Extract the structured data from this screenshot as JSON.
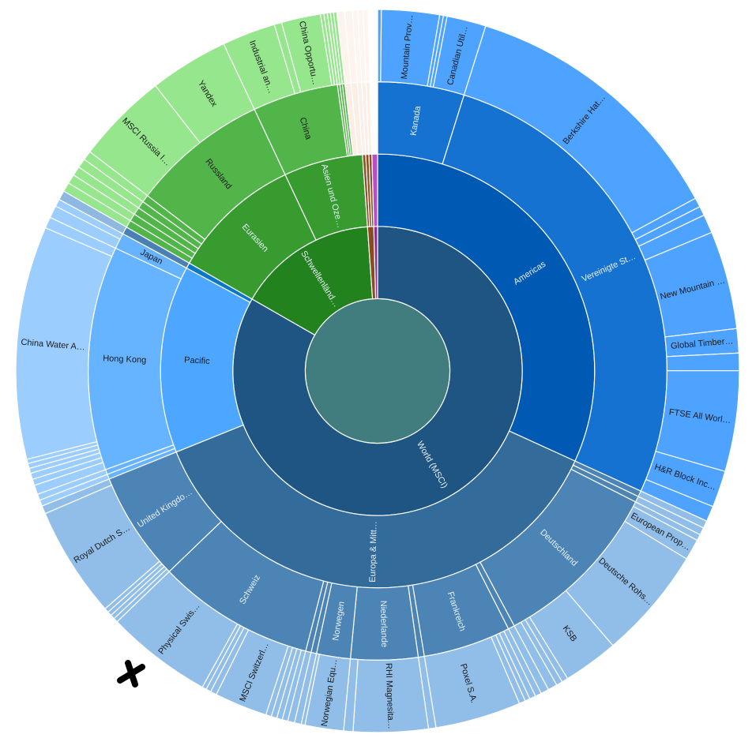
{
  "chart_data": {
    "type": "sunburst",
    "text_color_dark": "#1a1a1a",
    "text_color_light": "#e8f0f8",
    "root": {
      "name": "",
      "color": "#417d7e",
      "children": [
        {
          "name": "World (MSCI)",
          "color": "#1f5582",
          "children": [
            {
              "name": "Americas",
              "palette": [
                "#0059b3",
                "#1672d0",
                "#4da3ff"
              ],
              "children": [
                {
                  "name": "Kanada",
                  "children": [
                    {
                      "name": "",
                      "value": 0.6
                    },
                    {
                      "name": "Mountain Prov…",
                      "value": 9.3
                    },
                    {
                      "name": "",
                      "value": 0.6
                    },
                    {
                      "name": "",
                      "value": 0.6
                    },
                    {
                      "name": "Canadian Util…",
                      "value": 6.3
                    }
                  ]
                },
                {
                  "name": "Vereinigte St…",
                  "children": [
                    {
                      "name": "Berkshire Hat…",
                      "value": 44.1
                    },
                    {
                      "name": "",
                      "value": 1.5
                    },
                    {
                      "name": "",
                      "value": 1.5
                    },
                    {
                      "name": "",
                      "value": 3
                    },
                    {
                      "name": "New Mountain …",
                      "value": 15.8
                    },
                    {
                      "name": "Global Timber…",
                      "value": 3.9
                    },
                    {
                      "name": "",
                      "value": 2.8
                    },
                    {
                      "name": "FTSE All Worl…",
                      "value": 16.2
                    },
                    {
                      "name": "H&R Block Inc…",
                      "value": 5.9
                    },
                    {
                      "name": "",
                      "value": 2.5
                    }
                  ]
                }
              ]
            },
            {
              "name": "Europa & Mitt…",
              "palette": [
                "#336b9b",
                "#4c84b5",
                "#91bee8"
              ],
              "children": [
                {
                  "name": "",
                  "value": 1.2
                },
                {
                  "name": "",
                  "value": 1.2
                },
                {
                  "name": "Deutschland",
                  "children": [
                    {
                      "name": "",
                      "value": 1
                    },
                    {
                      "name": "European Prop…",
                      "value": 3.4
                    },
                    {
                      "name": "Deutsche Rohs…",
                      "value": 18.1
                    },
                    {
                      "name": "KSB",
                      "value": 8.9
                    },
                    {
                      "name": "",
                      "value": 1
                    },
                    {
                      "name": "",
                      "value": 1
                    },
                    {
                      "name": "",
                      "value": 1.5
                    }
                  ]
                },
                {
                  "name": "",
                  "value": 1.3
                },
                {
                  "name": "Frankreich",
                  "children": [
                    {
                      "name": "",
                      "value": 1
                    },
                    {
                      "name": "",
                      "value": 1
                    },
                    {
                      "name": "",
                      "value": 0.8
                    },
                    {
                      "name": "",
                      "value": 1
                    },
                    {
                      "name": "Poxel S.A.",
                      "value": 13.8
                    }
                  ]
                },
                {
                  "name": "",
                  "value": 1.2
                },
                {
                  "name": "Niederlande",
                  "children": [
                    {
                      "name": "RHI Magnesita…",
                      "value": 12
                    },
                    {
                      "name": "",
                      "value": 1.5
                    }
                  ]
                },
                {
                  "name": "Norwegen",
                  "children": [
                    {
                      "name": "Norwegian Equ…",
                      "value": 6.2
                    },
                    {
                      "name": "",
                      "value": 0.6
                    }
                  ]
                },
                {
                  "name": "",
                  "value": 1.1
                },
                {
                  "name": "",
                  "value": 1.1
                },
                {
                  "name": "Schweiz",
                  "children": [
                    {
                      "name": "",
                      "value": 0.9
                    },
                    {
                      "name": "",
                      "value": 0.9
                    },
                    {
                      "name": "",
                      "value": 0.9
                    },
                    {
                      "name": "",
                      "value": 0.9
                    },
                    {
                      "name": "MSCI Switzerl…",
                      "value": 8.5
                    },
                    {
                      "name": "",
                      "value": 1
                    },
                    {
                      "name": "",
                      "value": 0.8
                    },
                    {
                      "name": "",
                      "value": 0.7
                    },
                    {
                      "name": "Physical Swis…",
                      "value": 17.1
                    }
                  ]
                },
                {
                  "name": "United Kingdo…",
                  "children": [
                    {
                      "name": "",
                      "value": 0.7
                    },
                    {
                      "name": "",
                      "value": 0.7
                    },
                    {
                      "name": "",
                      "value": 0.7
                    },
                    {
                      "name": "",
                      "value": 0.7
                    },
                    {
                      "name": "Royal Dutch S…",
                      "value": 17.9
                    },
                    {
                      "name": "",
                      "value": 1.3
                    }
                  ]
                }
              ]
            },
            {
              "name": "Pacific",
              "palette": [
                "#4da6ff",
                "#66b3ff",
                "#9ccdff"
              ],
              "children": [
                {
                  "name": "",
                  "value": 1
                },
                {
                  "name": "",
                  "value": 1
                },
                {
                  "name": "Hong Kong",
                  "children": [
                    {
                      "name": "",
                      "value": 1.5
                    },
                    {
                      "name": "",
                      "value": 1
                    },
                    {
                      "name": "",
                      "value": 1
                    },
                    {
                      "name": "",
                      "value": 0.8
                    },
                    {
                      "name": "",
                      "value": 0.8
                    },
                    {
                      "name": "",
                      "value": 0.7
                    },
                    {
                      "name": "China Water A…",
                      "value": 37.5
                    },
                    {
                      "name": "",
                      "value": 1.8
                    }
                  ]
                },
                {
                  "name": "Japan",
                  "children": [
                    {
                      "name": "",
                      "value": 2
                    },
                    {
                      "name": "",
                      "value": 1.2
                    }
                  ]
                }
              ]
            },
            {
              "name": "",
              "value": 1.5,
              "palette": [
                "#0a78c8",
                "#4a80b4",
                "#8fb8e0"
              ]
            }
          ]
        },
        {
          "name": "Schwellenländ…",
          "color": "#22821d",
          "children": [
            {
              "name": "Eurasien",
              "palette": [
                "#379b30",
                "#52b54a",
                "#95e68d"
              ],
              "children": [
                {
                  "name": "",
                  "value": 1.5
                },
                {
                  "name": "",
                  "value": 1.5
                },
                {
                  "name": "",
                  "value": 1.5
                },
                {
                  "name": "",
                  "value": 1.5
                },
                {
                  "name": "",
                  "value": 1.5
                },
                {
                  "name": "Russland",
                  "children": [
                    {
                      "name": "MSCI Russia I…",
                      "value": 14.8
                    },
                    {
                      "name": "Yandex",
                      "value": 12.7
                    }
                  ]
                }
              ]
            },
            {
              "name": "Asien und Oze…",
              "palette": [
                "#379b30",
                "#52b54a",
                "#95e68d"
              ],
              "children": [
                {
                  "name": "China",
                  "children": [
                    {
                      "name": "Industrial an…",
                      "value": 8.6
                    },
                    {
                      "name": "",
                      "value": 1.2
                    },
                    {
                      "name": "China Opportu…",
                      "value": 6.3
                    },
                    {
                      "name": "",
                      "value": 0.55
                    },
                    {
                      "name": "",
                      "value": 0.55
                    }
                  ]
                },
                {
                  "name": "",
                  "value": 0.5
                },
                {
                  "name": "",
                  "value": 0.5
                },
                {
                  "name": "",
                  "value": 0.5
                },
                {
                  "name": "",
                  "value": 1.25,
                  "palette": [
                    "#fbeee4",
                    "#fdf4ee"
                  ]
                },
                {
                  "name": "",
                  "value": 1.25,
                  "palette": [
                    "#fbeee4",
                    "#fdf4ee"
                  ]
                }
              ]
            }
          ]
        },
        {
          "name": "",
          "color": "#8b4b20",
          "children": [
            {
              "name": "",
              "value": 0.85,
              "palette": [
                "#8e5024",
                "#fbf0e8",
                "#fdf5ef"
              ]
            },
            {
              "name": "",
              "value": 0.85,
              "palette": [
                "#8e5024",
                "#fbf0e8",
                "#fdf5ef"
              ]
            },
            {
              "name": "",
              "value": 0.8,
              "palette": [
                "#8e5024",
                "#fbf0e8",
                "#fdf5ef"
              ]
            }
          ]
        },
        {
          "name": "",
          "color": "#8a2f93",
          "children": [
            {
              "name": "",
              "value": 1.5,
              "palette": [
                "#b44fc6",
                "#ffffff",
                "#ffffff"
              ]
            }
          ]
        }
      ]
    }
  },
  "annotation": {
    "mark": "hand-drawn-x",
    "color": "#000000"
  }
}
